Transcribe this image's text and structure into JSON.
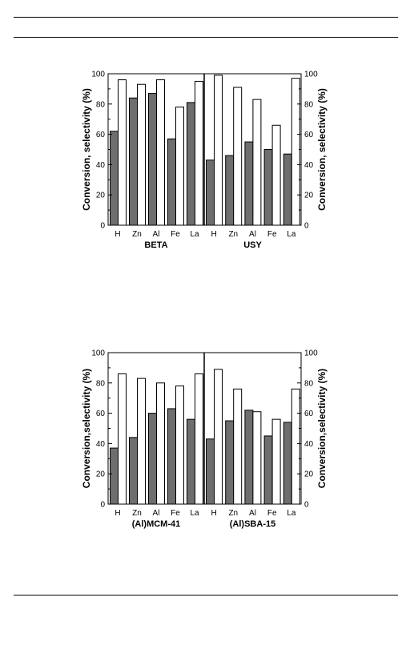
{
  "chart_data": [
    {
      "type": "bar",
      "panels": [
        {
          "label": "BETA",
          "categories": [
            "H",
            "Zn",
            "Al",
            "Fe",
            "La"
          ],
          "series": [
            {
              "fill": "#6e6e6e",
              "values": [
                62,
                84,
                87,
                57,
                81
              ]
            },
            {
              "fill": "#ffffff",
              "values": [
                96,
                93,
                96,
                78,
                95
              ]
            }
          ]
        },
        {
          "label": "USY",
          "categories": [
            "H",
            "Zn",
            "Al",
            "Fe",
            "La"
          ],
          "series": [
            {
              "fill": "#6e6e6e",
              "values": [
                43,
                46,
                55,
                50,
                47
              ]
            },
            {
              "fill": "#ffffff",
              "values": [
                99,
                91,
                83,
                66,
                97
              ]
            }
          ]
        }
      ],
      "ylabel_left": "Conversion, selectivity (%)",
      "ylabel_right": "Conversion, selectivity (%)",
      "ylim": [
        0,
        100
      ],
      "yticks": [
        "0",
        "20",
        "40",
        "60",
        "80",
        "100"
      ]
    },
    {
      "type": "bar",
      "panels": [
        {
          "label": "(Al)MCM-41",
          "categories": [
            "H",
            "Zn",
            "Al",
            "Fe",
            "La"
          ],
          "series": [
            {
              "fill": "#6e6e6e",
              "values": [
                37,
                44,
                60,
                63,
                56
              ]
            },
            {
              "fill": "#ffffff",
              "values": [
                86,
                83,
                80,
                78,
                86
              ]
            }
          ]
        },
        {
          "label": "(Al)SBA-15",
          "categories": [
            "H",
            "Zn",
            "Al",
            "Fe",
            "La"
          ],
          "series": [
            {
              "fill": "#6e6e6e",
              "values": [
                43,
                55,
                62,
                45,
                54
              ]
            },
            {
              "fill": "#ffffff",
              "values": [
                89,
                76,
                61,
                56,
                76
              ]
            }
          ]
        }
      ],
      "ylabel_left": "Conversion,selectivity (%)",
      "ylabel_right": "Conversion,selectivity (%)",
      "ylim": [
        0,
        100
      ],
      "yticks": [
        "0",
        "20",
        "40",
        "60",
        "80",
        "100"
      ]
    }
  ]
}
